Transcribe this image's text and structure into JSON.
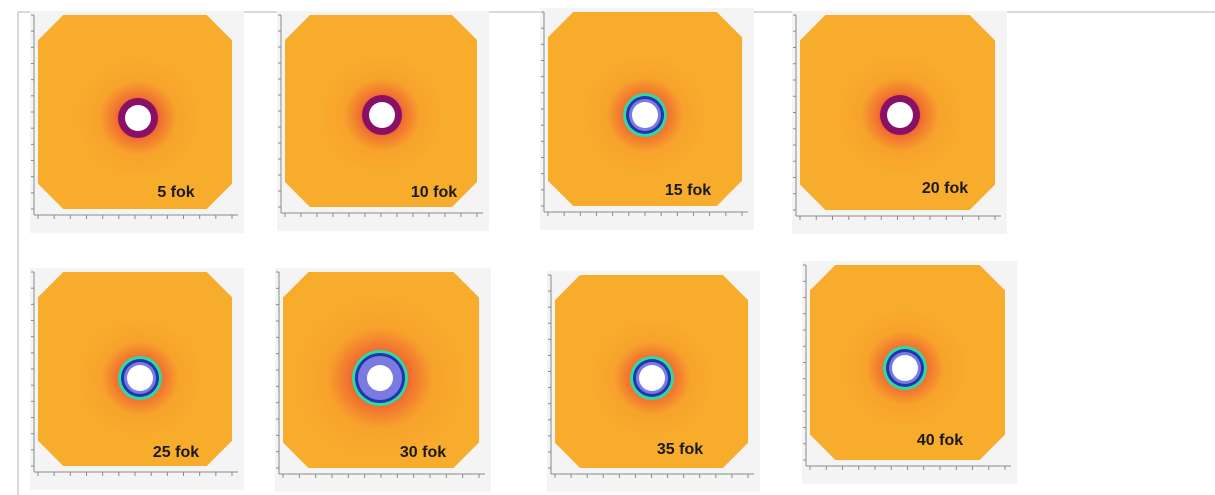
{
  "panels": [
    {
      "label": "5 fok"
    },
    {
      "label": "10 fok"
    },
    {
      "label": "15 fok"
    },
    {
      "label": "20 fok"
    },
    {
      "label": "25 fok"
    },
    {
      "label": "30 fok"
    },
    {
      "label": "35 fok"
    },
    {
      "label": "40 fok"
    }
  ]
}
